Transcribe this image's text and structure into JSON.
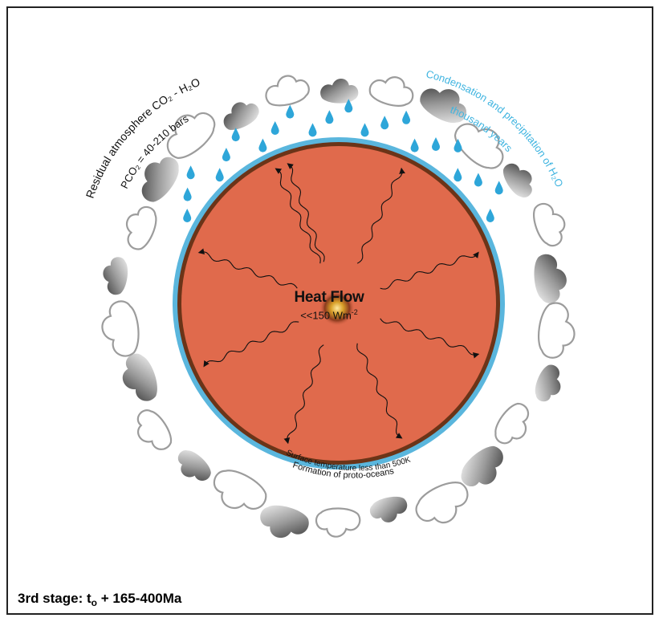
{
  "heat_flow": {
    "title": "Heat Flow",
    "value_prefix": "<<150 Wm",
    "value_exp": "-2"
  },
  "labels": {
    "atmosphere_line1": "Residual atmosphere CO₂ - H₂O",
    "atmosphere_line2": "PCO₂ = 40-210  bars",
    "condensation_line1": "Condensation and precipitation of H₂O",
    "condensation_line2": "thousand years",
    "surface_temp": "Surface temperature less than 500K",
    "proto_oceans": "Formation of proto-oceans"
  },
  "caption": {
    "prefix": "3rd stage: t",
    "sub": "o",
    "suffix": " + 165-400Ma"
  },
  "colors": {
    "planet_fill": "#e06a4c",
    "crust": "#6b3418",
    "ocean": "#5ab6dd",
    "rain": "#2ea6d9",
    "condensation_text": "#3fb4e0",
    "core": "#d8a028"
  }
}
